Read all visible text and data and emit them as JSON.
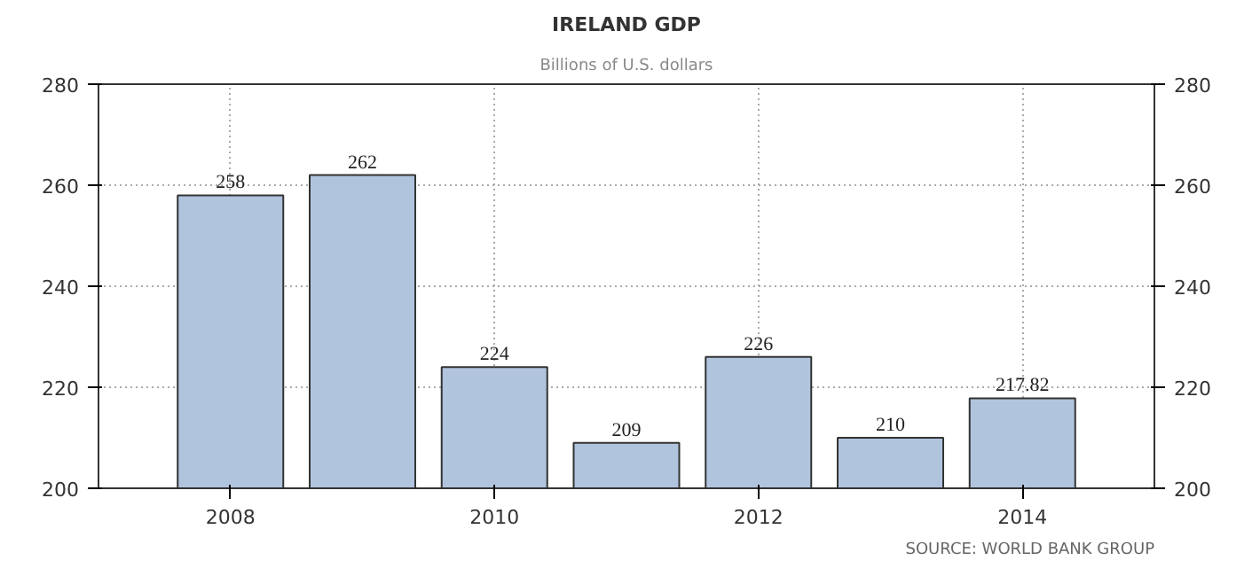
{
  "chart_data": {
    "type": "bar",
    "title": "IRELAND GDP",
    "subtitle": "Billions of U.S. dollars",
    "x": [
      2008,
      2009,
      2010,
      2011,
      2012,
      2013,
      2014
    ],
    "values": [
      258,
      262,
      224,
      209,
      226,
      210,
      217.82
    ],
    "color": "#b0c4de",
    "data_labels": true,
    "xlim": [
      2007,
      2015
    ],
    "xticks": [
      2008,
      2010,
      2012,
      2014
    ],
    "ylim": [
      200,
      280
    ],
    "yticks": [
      200,
      220,
      240,
      260,
      280
    ],
    "y2lim": [
      200,
      280
    ],
    "y2ticks": [
      200,
      220,
      240,
      260,
      280
    ],
    "grid": true,
    "annotations": [
      "SOURCE: WORLD BANK GROUP"
    ]
  }
}
